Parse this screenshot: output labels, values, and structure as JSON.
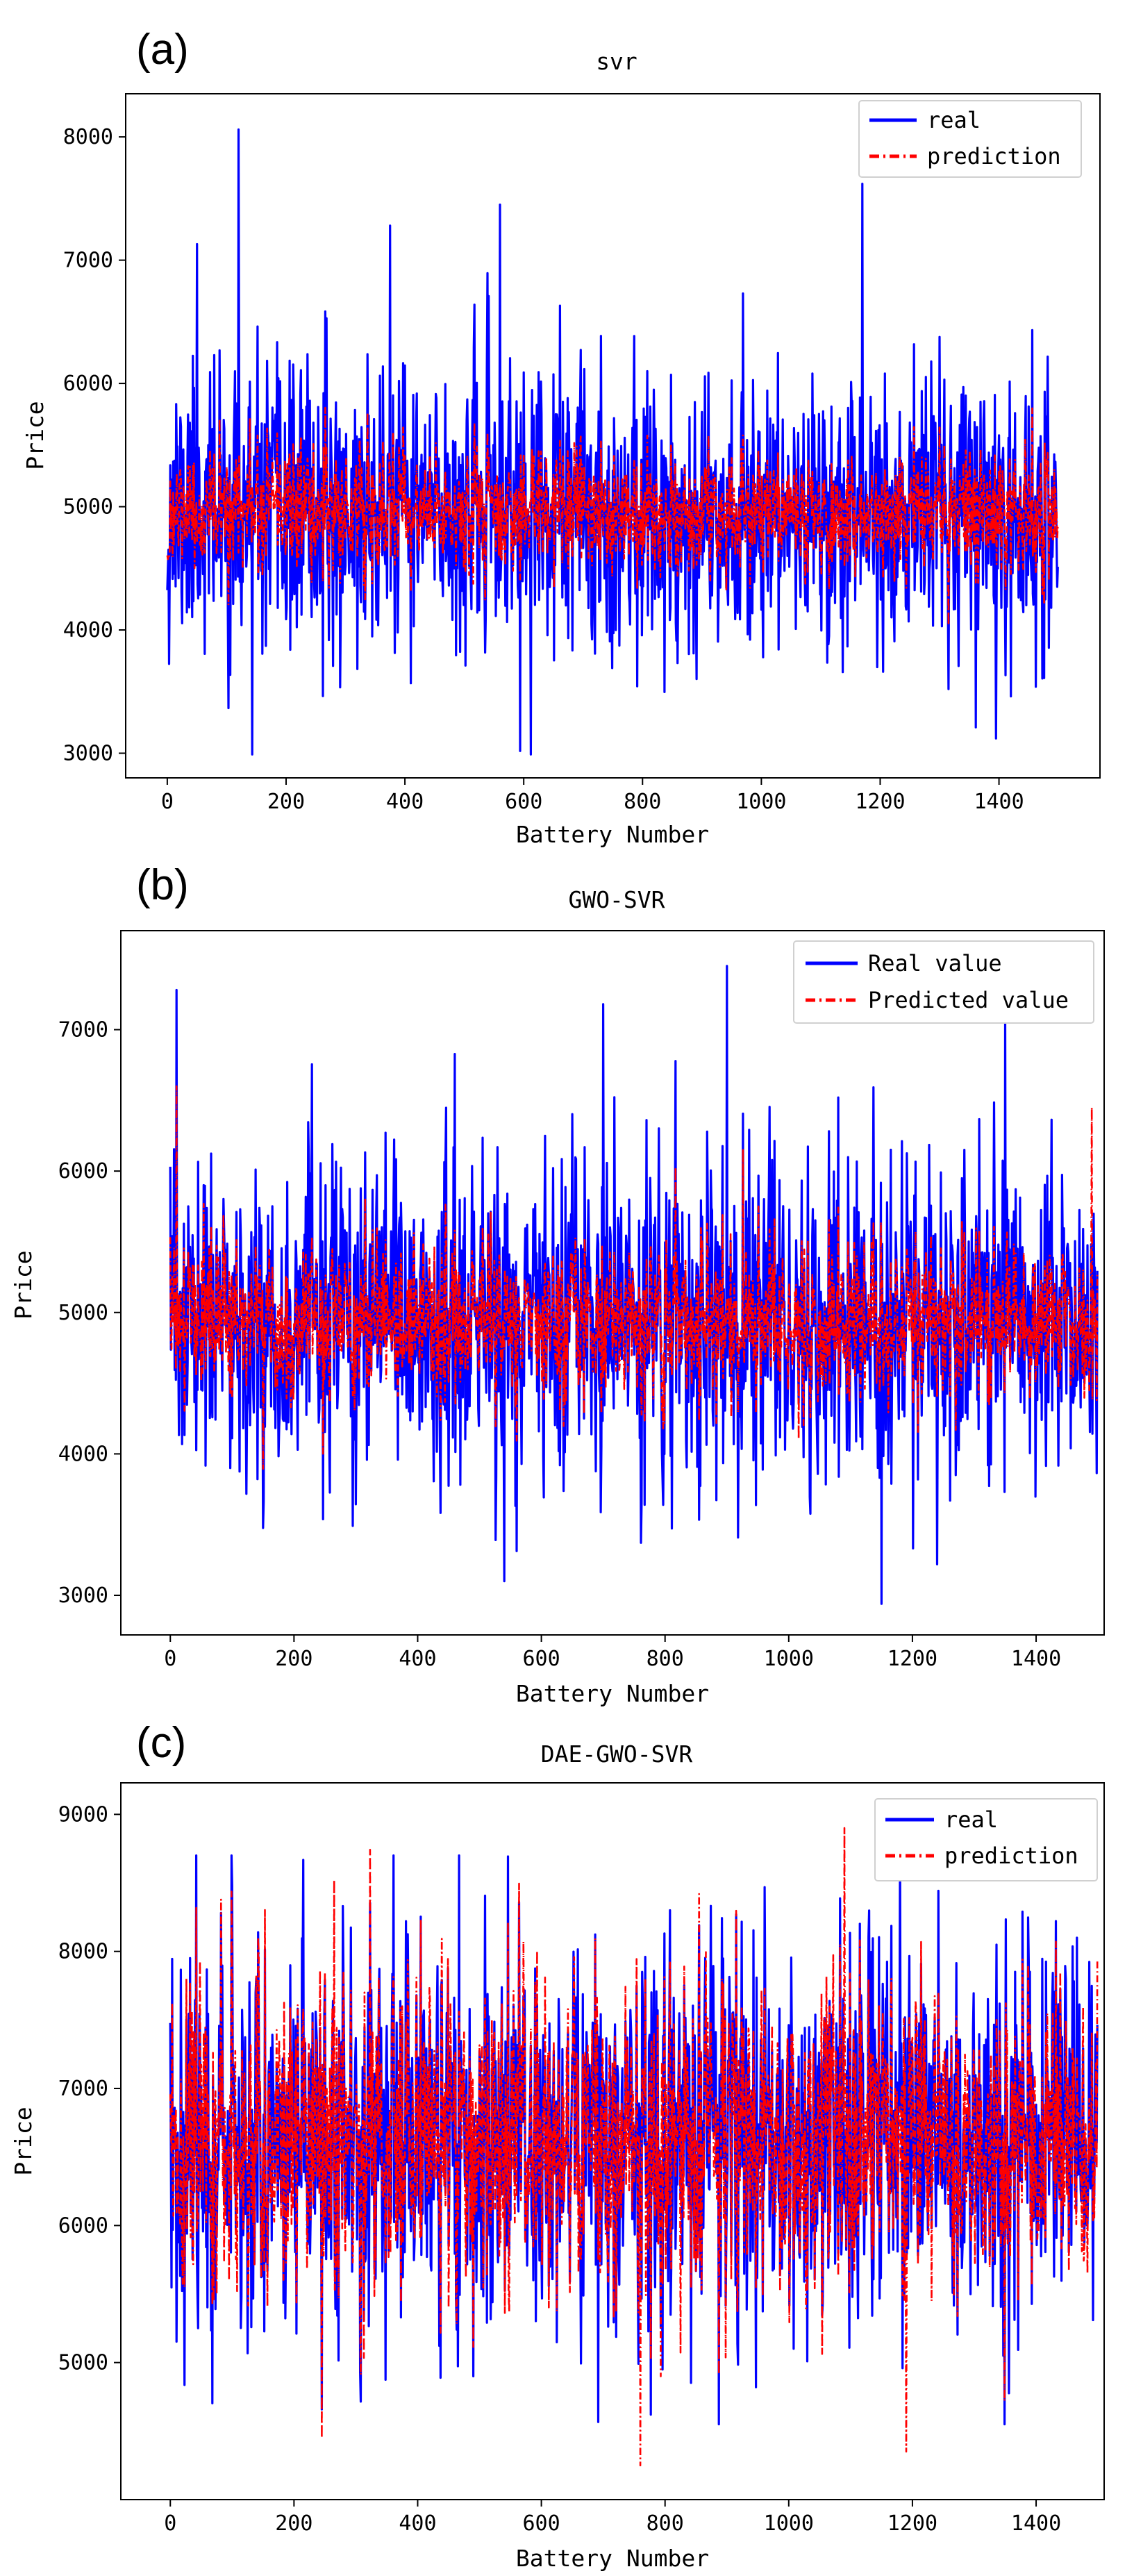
{
  "figure": {
    "colors": {
      "real": "#0000ff",
      "prediction": "#ff0000",
      "axes": "#000000",
      "background": "#ffffff"
    }
  },
  "chart_data": [
    {
      "type": "line",
      "panel_label": "(a)",
      "title": "svr",
      "xlabel": "Battery Number",
      "ylabel": "Price",
      "xlim": [
        -70,
        1570
      ],
      "ylim": [
        2800,
        8350
      ],
      "xticks": [
        0,
        200,
        400,
        600,
        800,
        1000,
        1200,
        1400
      ],
      "yticks": [
        3000,
        4000,
        5000,
        6000,
        7000,
        8000
      ],
      "grid": false,
      "legend_position": "top-right",
      "n_points": 1500,
      "seed": 11,
      "series": [
        {
          "name": "real",
          "style": "solid",
          "color": "#0000ff",
          "mean": 4960,
          "spread": 560,
          "min": 2990,
          "max": 8060,
          "peaks": [
            [
              120,
              8060
            ],
            [
              375,
              7280
            ],
            [
              560,
              7450
            ],
            [
              1170,
              7620
            ],
            [
              612,
              2990
            ],
            [
              143,
              2990
            ],
            [
              1395,
              3120
            ],
            [
              50,
              7130
            ]
          ]
        },
        {
          "name": "prediction",
          "style": "dash-dot",
          "color": "#ff0000",
          "mean": 4960,
          "spread": 300,
          "min": 3850,
          "max": 6350,
          "peaks": []
        }
      ]
    },
    {
      "type": "line",
      "panel_label": "(b)",
      "title": "GWO-SVR",
      "xlabel": "Battery Number",
      "ylabel": "Price",
      "xlim": [
        -80,
        1510
      ],
      "ylim": [
        2720,
        7700
      ],
      "xticks": [
        0,
        200,
        400,
        600,
        800,
        1000,
        1200,
        1400
      ],
      "yticks": [
        3000,
        4000,
        5000,
        6000,
        7000
      ],
      "grid": false,
      "legend_position": "top-right",
      "n_points": 1500,
      "seed": 23,
      "series": [
        {
          "name": "Real value",
          "style": "solid",
          "color": "#0000ff",
          "mean": 4920,
          "spread": 560,
          "min": 2940,
          "max": 7450,
          "peaks": [
            [
              10,
              7280
            ],
            [
              900,
              7450
            ],
            [
              1150,
              2940
            ],
            [
              540,
              3100
            ],
            [
              1350,
              7050
            ],
            [
              700,
              7180
            ]
          ]
        },
        {
          "name": "Predicted value",
          "style": "dash-dot",
          "color": "#ff0000",
          "mean": 4920,
          "spread": 330,
          "min": 3350,
          "max": 6600,
          "peaks": [
            [
              10,
              6600
            ],
            [
              1490,
              6450
            ]
          ]
        }
      ]
    },
    {
      "type": "line",
      "panel_label": "(c)",
      "title": "DAE-GWO-SVR",
      "xlabel": "Battery Number",
      "ylabel": "Price",
      "xlim": [
        -80,
        1510
      ],
      "ylim": [
        4000,
        9230
      ],
      "xticks": [
        0,
        200,
        400,
        600,
        800,
        1000,
        1200,
        1400
      ],
      "yticks": [
        5000,
        6000,
        7000,
        8000,
        9000
      ],
      "grid": false,
      "legend_position": "top-right",
      "n_points": 1500,
      "seed": 37,
      "series": [
        {
          "name": "real",
          "style": "solid",
          "color": "#0000ff",
          "mean": 6650,
          "spread": 720,
          "min": 4550,
          "max": 8700,
          "peaks": [
            [
              1180,
              8700
            ],
            [
              100,
              8480
            ]
          ]
        },
        {
          "name": "prediction",
          "style": "dash-dot",
          "color": "#ff0000",
          "mean": 6650,
          "spread": 700,
          "min": 4250,
          "max": 8900,
          "peaks": [
            [
              1090,
              8900
            ],
            [
              760,
              4250
            ],
            [
              1190,
              4350
            ],
            [
              265,
              8520
            ],
            [
              245,
              4450
            ]
          ]
        }
      ]
    }
  ]
}
